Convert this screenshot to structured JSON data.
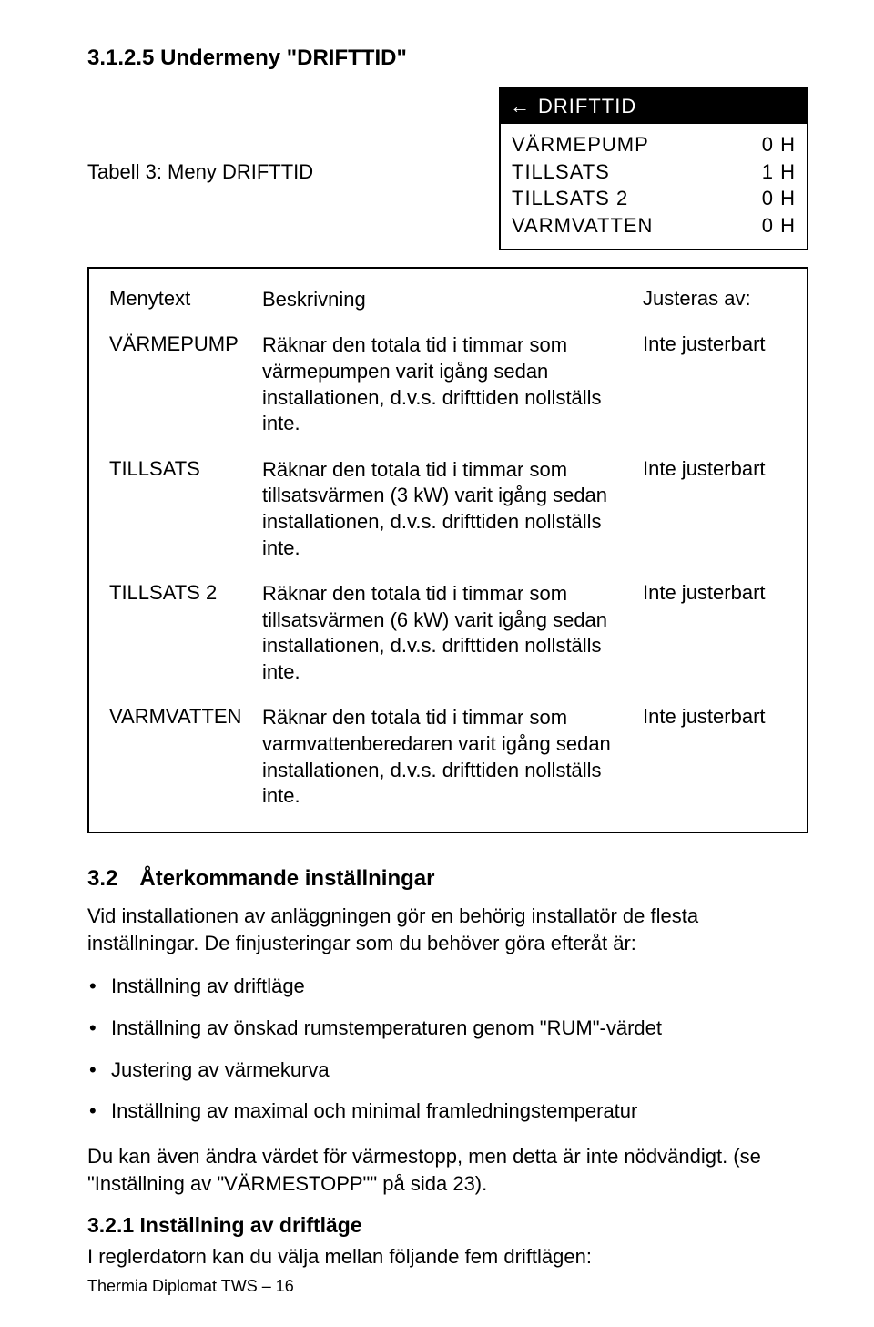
{
  "section_title": "3.1.2.5 Undermeny \"DRIFTTID\"",
  "display": {
    "header_icon": "←",
    "header_label": "DRIFTTID",
    "rows": [
      {
        "label": "VÄRMEPUMP",
        "value": "0 H"
      },
      {
        "label": "TILLSATS",
        "value": "1 H"
      },
      {
        "label": "TILLSATS 2",
        "value": "0 H"
      },
      {
        "label": "VARMVATTEN",
        "value": "0 H"
      }
    ]
  },
  "table_caption": "Tabell 3: Meny DRIFTTID",
  "table": {
    "header": {
      "c1": "Menytext",
      "c2": "Beskrivning",
      "c3": "Justeras av:"
    },
    "rows": [
      {
        "c1": "VÄRMEPUMP",
        "c2": "Räknar den totala tid i timmar som värmepumpen varit igång sedan installationen, d.v.s. drifttiden nollställs inte.",
        "c3": "Inte justerbart"
      },
      {
        "c1": "TILLSATS",
        "c2": "Räknar den totala tid i timmar som tillsatsvärmen (3 kW) varit igång sedan installationen, d.v.s. drifttiden nollställs inte.",
        "c3": "Inte justerbart"
      },
      {
        "c1": "TILLSATS 2",
        "c2": "Räknar den totala tid i timmar som tillsatsvärmen (6 kW) varit igång sedan installationen, d.v.s. drifttiden nollställs inte.",
        "c3": "Inte justerbart"
      },
      {
        "c1": "VARMVATTEN",
        "c2": "Räknar den totala tid i timmar som varmvattenberedaren varit igång sedan installationen, d.v.s. drifttiden nollställs inte.",
        "c3": "Inte justerbart"
      }
    ]
  },
  "section32": {
    "num": "3.2",
    "title": "Återkommande inställningar",
    "intro": "Vid installationen av anläggningen gör en behörig installatör de flesta inställningar. De finjusteringar som du behöver göra efteråt är:",
    "bullets": [
      "Inställning av driftläge",
      "Inställning av önskad rumstemperaturen genom \"RUM\"-värdet",
      "Justering av värmekurva",
      "Inställning av maximal och minimal framledningstemperatur"
    ],
    "tail": "Du kan även ändra värdet för värmestopp, men detta är inte nödvändigt. (se \"Inställning av \"VÄRMESTOPP\"\" på sida 23)."
  },
  "section321": {
    "num_title": "3.2.1 Inställning av driftläge",
    "body": "I reglerdatorn kan du välja mellan följande fem driftlägen:"
  },
  "footer": "Thermia Diplomat TWS – 16"
}
